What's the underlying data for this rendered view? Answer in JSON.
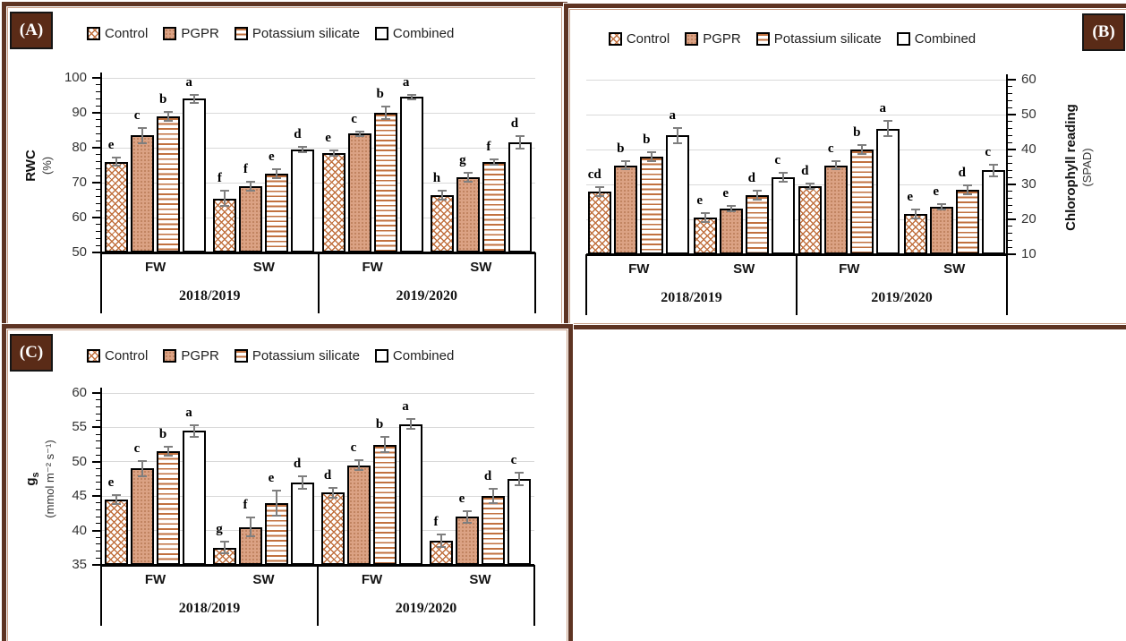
{
  "figure": {
    "panels": [
      {
        "id": "A",
        "label": "(A)"
      },
      {
        "id": "B",
        "label": "(B)"
      },
      {
        "id": "C",
        "label": "(C)"
      }
    ],
    "colors": {
      "frame_brown": "#5e3423",
      "tag_background": "#5a2b17",
      "tag_text": "#ffffff",
      "pattern_orange": "#c1713f",
      "pgpr_fill": "#dba284",
      "bar_border": "#000000",
      "error_bar": "#7f7f7f",
      "gridline": "#d9d9d9",
      "axis": "#000000",
      "background": "#ffffff"
    }
  },
  "chart_data": [
    {
      "type": "bar",
      "panel": "A",
      "ylabel_bold": "RWC",
      "ylabel_bold_sub": "",
      "ylabel_normal": "(%)",
      "ylim": [
        50,
        100
      ],
      "ytick_step": 10,
      "yminor_step": 2,
      "axis_side": "left",
      "grid": true,
      "legend_position": "top",
      "categories_water": [
        "FW",
        "SW",
        "FW",
        "SW"
      ],
      "categories_season": [
        "2018/2019",
        "2019/2020"
      ],
      "series": [
        {
          "name": "Control",
          "pattern": "crosshatch",
          "values": [
            76,
            65.5,
            78.5,
            66.5
          ],
          "errors": [
            1.5,
            2.5,
            1,
            1.5
          ],
          "letters": [
            "e",
            "f",
            "e",
            "h"
          ]
        },
        {
          "name": "PGPR",
          "pattern": "dots",
          "values": [
            83.5,
            69,
            84,
            71.5
          ],
          "errors": [
            2.5,
            1.5,
            1,
            1.5
          ],
          "letters": [
            "c",
            "f",
            "c",
            "g"
          ]
        },
        {
          "name": "Potassium silicate",
          "pattern": "hlines",
          "values": [
            89,
            72.5,
            90,
            76
          ],
          "errors": [
            1.5,
            1.5,
            2,
            1
          ],
          "letters": [
            "b",
            "e",
            "b",
            "f"
          ]
        },
        {
          "name": "Combined",
          "pattern": "plain",
          "values": [
            94,
            79.5,
            94.5,
            81.5
          ],
          "errors": [
            1.5,
            1,
            1,
            2
          ],
          "letters": [
            "a",
            "d",
            "a",
            "d"
          ]
        }
      ]
    },
    {
      "type": "bar",
      "panel": "B",
      "ylabel_bold": "Chlorophyll reading",
      "ylabel_bold_sub": "",
      "ylabel_normal": "(SPAD)",
      "ylim": [
        10,
        60
      ],
      "ytick_step": 10,
      "yminor_step": 2,
      "axis_side": "right",
      "grid": true,
      "legend_position": "top",
      "categories_water": [
        "FW",
        "SW",
        "FW",
        "SW"
      ],
      "categories_season": [
        "2018/2019",
        "2019/2020"
      ],
      "series": [
        {
          "name": "Control",
          "pattern": "crosshatch",
          "values": [
            28,
            20.5,
            29.5,
            21.5
          ],
          "errors": [
            1.5,
            1.5,
            1,
            1.5
          ],
          "letters": [
            "cd",
            "e",
            "d",
            "e"
          ]
        },
        {
          "name": "PGPR",
          "pattern": "dots",
          "values": [
            35.5,
            23,
            35.5,
            23.5
          ],
          "errors": [
            1.5,
            1,
            1.5,
            1
          ],
          "letters": [
            "b",
            "e",
            "c",
            "e"
          ]
        },
        {
          "name": "Potassium silicate",
          "pattern": "hlines",
          "values": [
            38,
            27,
            40,
            28.5
          ],
          "errors": [
            1.5,
            1.5,
            1.5,
            1.5
          ],
          "letters": [
            "b",
            "d",
            "b",
            "d"
          ]
        },
        {
          "name": "Combined",
          "pattern": "plain",
          "values": [
            44,
            32,
            46,
            34
          ],
          "errors": [
            2.5,
            1.5,
            2.5,
            2
          ],
          "letters": [
            "a",
            "c",
            "a",
            "c"
          ]
        }
      ]
    },
    {
      "type": "bar",
      "panel": "C",
      "ylabel_bold": "g",
      "ylabel_bold_sub": "s",
      "ylabel_normal": "(mmol m⁻² s⁻¹)",
      "ylim": [
        35,
        60
      ],
      "ytick_step": 5,
      "yminor_step": 1,
      "axis_side": "left",
      "grid": true,
      "legend_position": "top",
      "categories_water": [
        "FW",
        "SW",
        "FW",
        "SW"
      ],
      "categories_season": [
        "2018/2019",
        "2019/2020"
      ],
      "series": [
        {
          "name": "Control",
          "pattern": "crosshatch",
          "values": [
            44.5,
            37.5,
            45.5,
            38.5
          ],
          "errors": [
            0.8,
            1,
            0.8,
            1
          ],
          "letters": [
            "e",
            "g",
            "d",
            "f"
          ]
        },
        {
          "name": "PGPR",
          "pattern": "dots",
          "values": [
            49,
            40.5,
            49.5,
            42
          ],
          "errors": [
            1.2,
            1.5,
            0.8,
            1
          ],
          "letters": [
            "c",
            "f",
            "c",
            "e"
          ]
        },
        {
          "name": "Potassium silicate",
          "pattern": "hlines",
          "values": [
            51.5,
            44,
            52.5,
            45
          ],
          "errors": [
            0.8,
            2,
            1.2,
            1.2
          ],
          "letters": [
            "b",
            "e",
            "b",
            "d"
          ]
        },
        {
          "name": "Combined",
          "pattern": "plain",
          "values": [
            54.5,
            47,
            55.5,
            47.5
          ],
          "errors": [
            1,
            1,
            0.8,
            1
          ],
          "letters": [
            "a",
            "d",
            "a",
            "c"
          ]
        }
      ]
    }
  ]
}
